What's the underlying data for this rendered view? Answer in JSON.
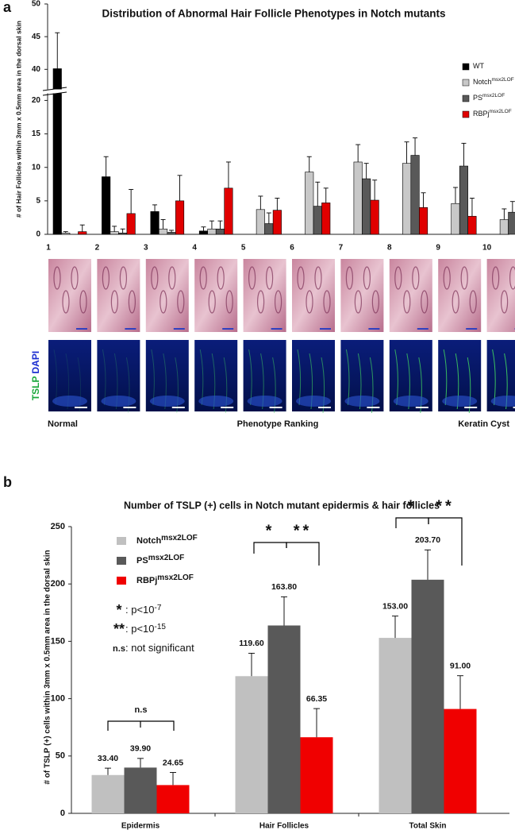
{
  "chart_data": [
    {
      "type": "bar",
      "panel": "a",
      "title": "Distribution of Abnormal Hair Follicle Phenotypes in Notch mutants",
      "y_label": "# of Hair Follicles within 3mm x 0.5mm area in the dorsal skin",
      "categories": [
        "1",
        "2",
        "3",
        "4",
        "5",
        "6",
        "7",
        "8",
        "9",
        "10"
      ],
      "ylim": [
        0,
        50
      ],
      "axis_break": [
        21,
        37
      ],
      "yticks": [
        0,
        5,
        10,
        15,
        20,
        40,
        45,
        50
      ],
      "series": [
        {
          "name": "WT",
          "superscript": "",
          "color": "#000000",
          "values": [
            40.1,
            8.6,
            3.4,
            0.5,
            0,
            0,
            0,
            0,
            0,
            0
          ],
          "errors": [
            5.5,
            3.0,
            1.0,
            0.6,
            0,
            0,
            0,
            0,
            0,
            0
          ]
        },
        {
          "name": "Notch",
          "superscript": "msx2LOF",
          "color": "#c8c8c8",
          "values": [
            0.2,
            0.4,
            0.8,
            0.8,
            3.7,
            9.3,
            10.8,
            10.6,
            4.6,
            2.2
          ],
          "errors": [
            0.2,
            0.8,
            1.4,
            1.2,
            2.0,
            2.3,
            2.6,
            3.2,
            2.4,
            1.6
          ]
        },
        {
          "name": "PS",
          "superscript": "msx2LOF",
          "color": "#595959",
          "values": [
            0,
            0.2,
            0.3,
            0.8,
            1.6,
            4.2,
            8.3,
            11.8,
            10.2,
            3.3
          ],
          "errors": [
            0,
            0.6,
            0.3,
            1.2,
            1.6,
            3.6,
            2.3,
            2.6,
            3.4,
            1.6
          ]
        },
        {
          "name": "RBPj",
          "superscript": "msx2LOF",
          "color": "#e00000",
          "values": [
            0.4,
            3.1,
            5.0,
            6.9,
            3.6,
            4.7,
            5.1,
            4.0,
            2.7,
            0.7
          ],
          "errors": [
            1.0,
            3.6,
            3.8,
            3.9,
            1.8,
            2.2,
            3.0,
            2.2,
            2.7,
            1.4
          ]
        }
      ],
      "stain_labels": [
        "TSLP",
        "DAPI"
      ],
      "bottom_labels": [
        "Normal",
        "Phenotype Ranking",
        "Keratin Cyst"
      ]
    },
    {
      "type": "bar",
      "panel": "b",
      "title": "Number of TSLP (+) cells in Notch mutant epidermis & hair follicles",
      "y_label": "# of TSLP (+) cells within 3mm x 0.5mm area in the dorsal skin",
      "categories": [
        "Epidermis",
        "Hair Follicles",
        "Total Skin"
      ],
      "ylim": [
        0,
        250
      ],
      "yticks": [
        0,
        50,
        100,
        150,
        200,
        250
      ],
      "series": [
        {
          "name": "Notch",
          "superscript": "msx2LOF",
          "color": "#c0c0c0",
          "values": [
            33.4,
            119.6,
            153.0
          ],
          "value_labels": [
            "33.40",
            "119.60",
            "153.00"
          ],
          "errors": [
            6,
            20,
            19
          ]
        },
        {
          "name": "PS",
          "superscript": "msx2LOF",
          "color": "#595959",
          "values": [
            39.9,
            163.8,
            203.7
          ],
          "value_labels": [
            "39.90",
            "163.80",
            "203.70"
          ],
          "errors": [
            8,
            25,
            26
          ]
        },
        {
          "name": "RBPj",
          "superscript": "msx2LOF",
          "color": "#f00000",
          "values": [
            24.65,
            66.35,
            91.0
          ],
          "value_labels": [
            "24.65",
            "66.35",
            "91.00"
          ],
          "errors": [
            11,
            25,
            29
          ]
        }
      ],
      "significance_key": [
        {
          "symbol": "*",
          "text": ": p<10",
          "exponent": "-7"
        },
        {
          "symbol": "**",
          "text": ": p<10",
          "exponent": "-15"
        },
        {
          "symbol": "n.s",
          "text": ": not significant",
          "exponent": ""
        }
      ],
      "brackets": [
        {
          "label": "n.s"
        },
        {
          "label": "*"
        },
        {
          "label": "**"
        },
        {
          "label": "*"
        },
        {
          "label": "**"
        }
      ]
    }
  ]
}
